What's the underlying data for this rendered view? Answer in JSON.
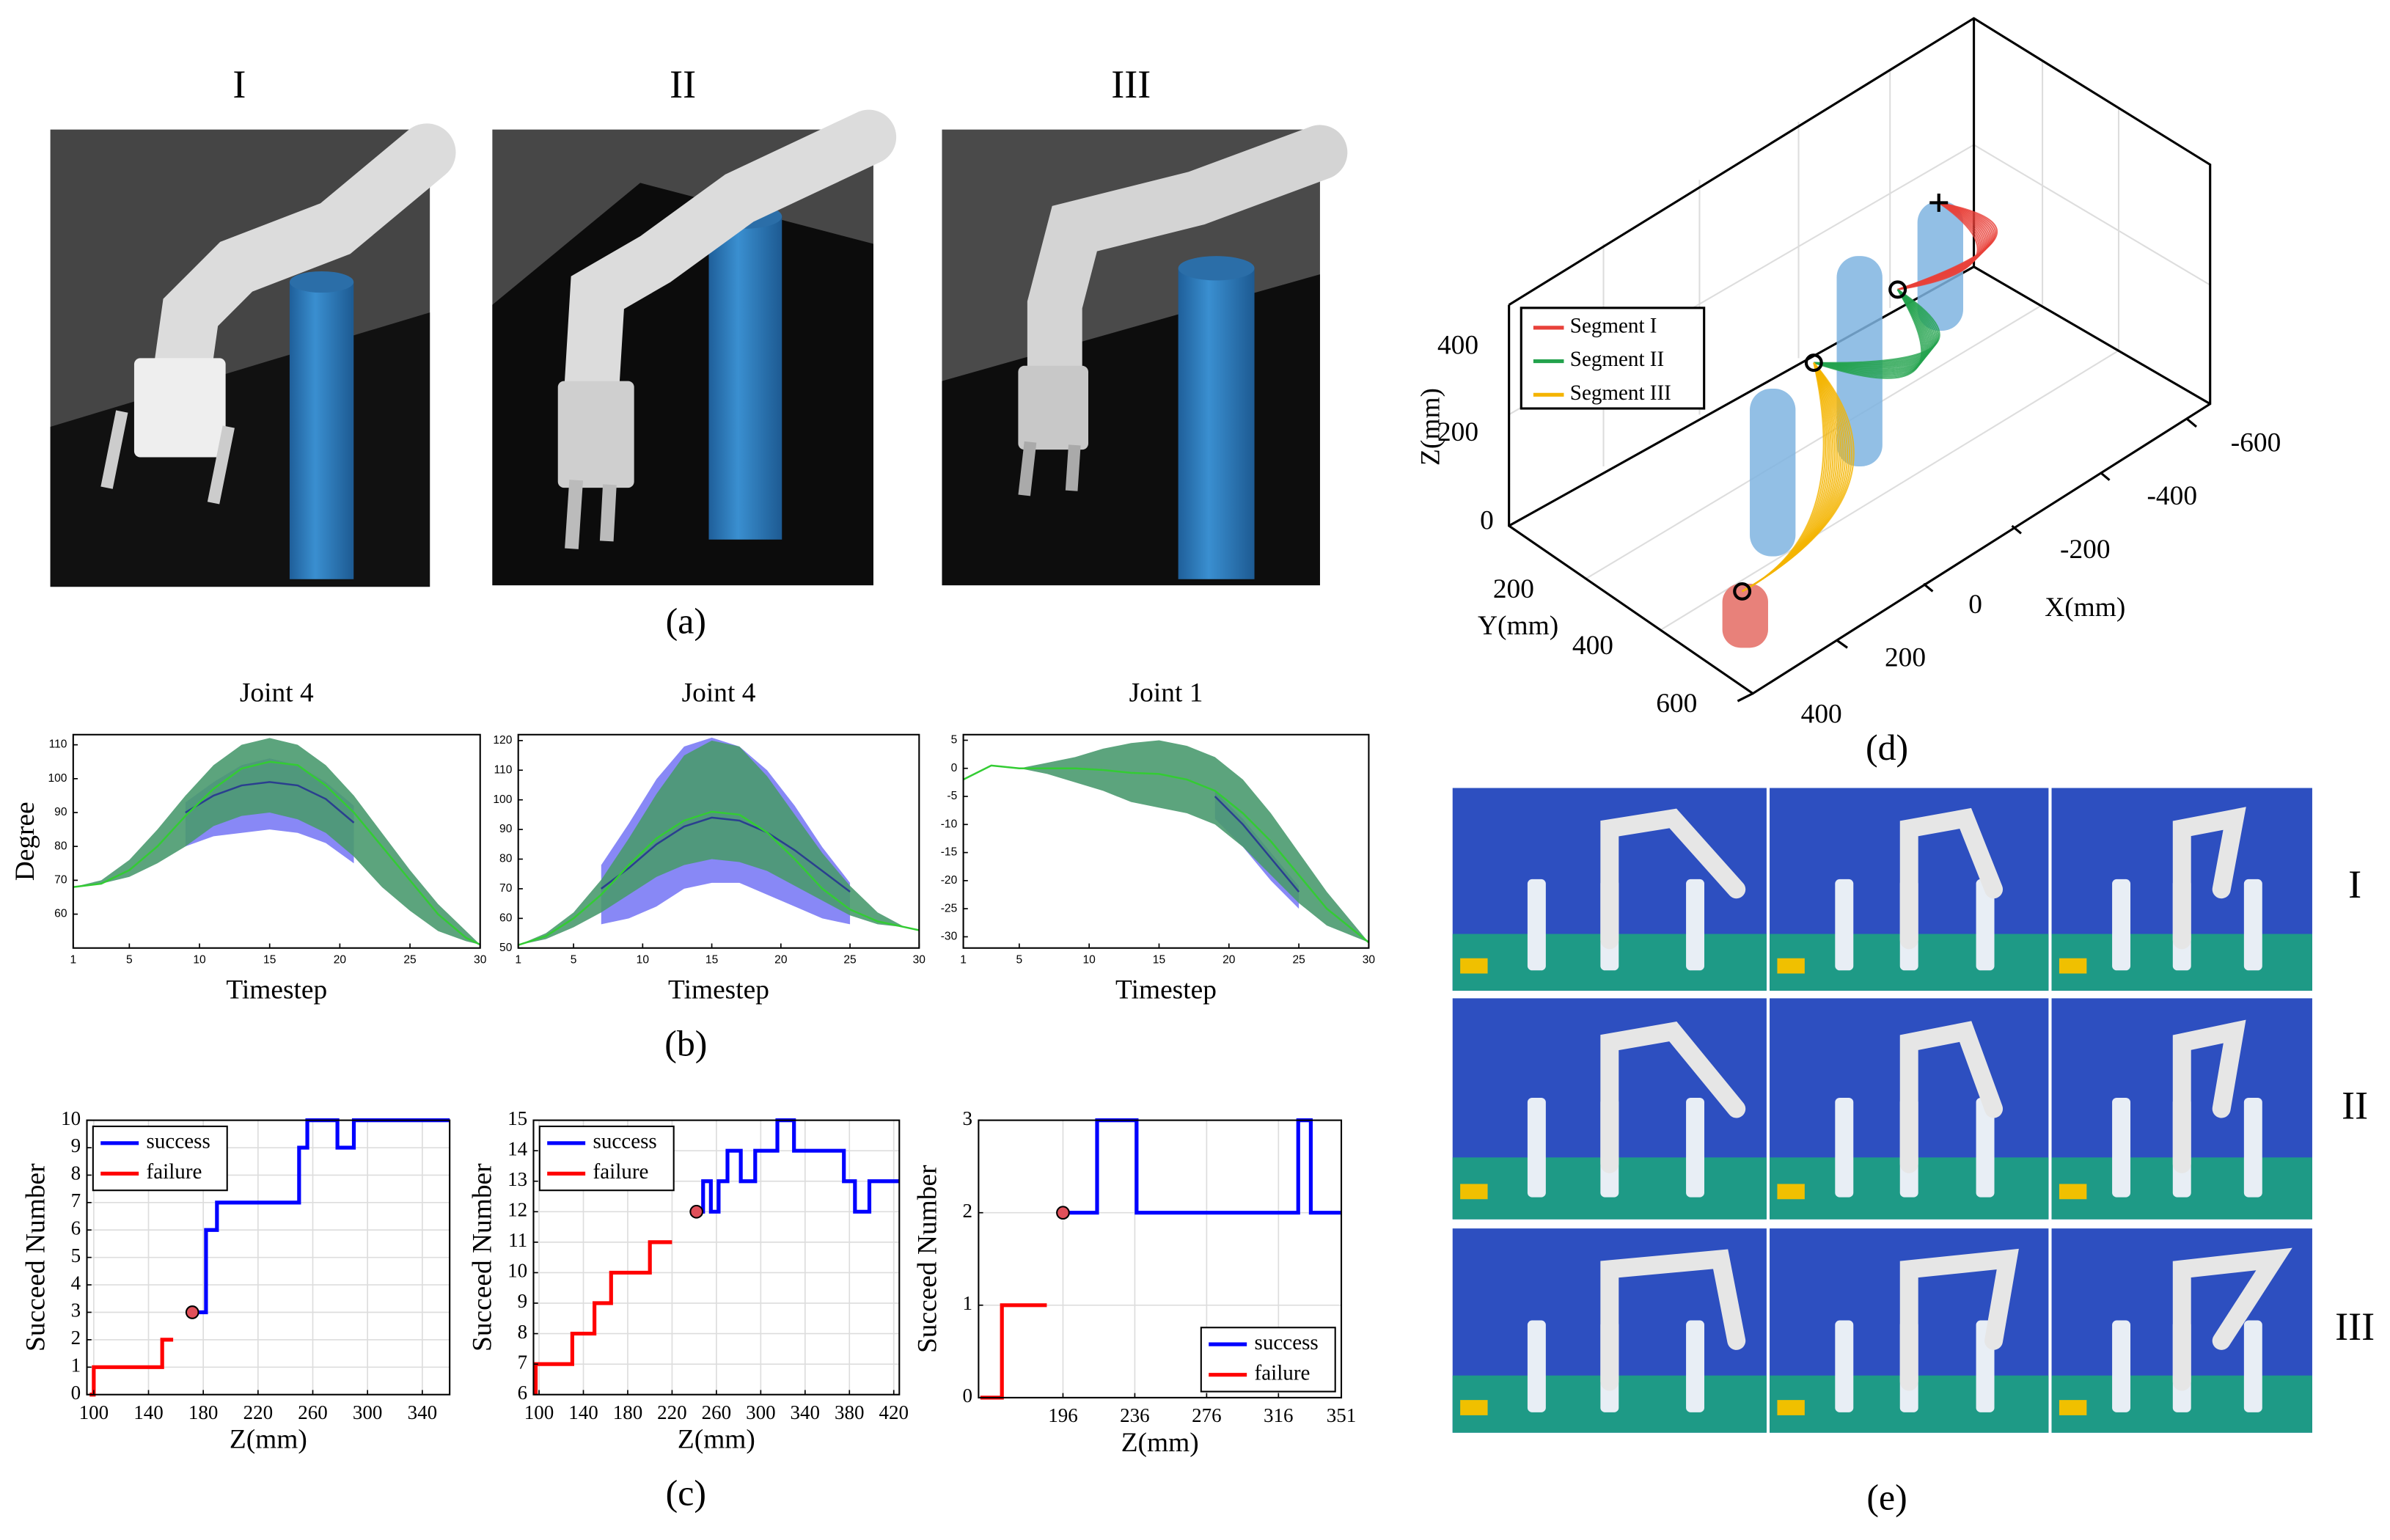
{
  "panel_a": {
    "titles": [
      "I",
      "II",
      "III"
    ],
    "caption": "(a)"
  },
  "chart_data": [
    {
      "type": "band",
      "title": "Joint 4",
      "x_label": "Timestep",
      "y_label": "Degree",
      "x": [
        1,
        3,
        5,
        7,
        9,
        11,
        13,
        15,
        17,
        19,
        21,
        23,
        25,
        27,
        29,
        30
      ],
      "xlim": [
        1,
        30
      ],
      "xticks": [
        1,
        5,
        10,
        15,
        20,
        25,
        30
      ],
      "ylim": [
        50,
        113
      ],
      "yticks": [
        60,
        70,
        80,
        90,
        100,
        110
      ],
      "series": [
        {
          "color": "#7b7bf5",
          "lower": [
            null,
            null,
            null,
            null,
            80,
            83,
            84,
            85,
            84,
            81,
            75,
            null,
            null,
            null,
            null,
            null
          ],
          "upper": [
            null,
            null,
            null,
            null,
            93,
            99,
            104,
            106,
            104,
            99,
            92,
            null,
            null,
            null,
            null,
            null
          ]
        },
        {
          "color": "#4a9a6f",
          "lower": [
            68,
            69,
            71,
            75,
            80,
            86,
            89,
            90,
            88,
            84,
            77,
            68,
            61,
            55,
            52,
            51
          ],
          "upper": [
            68,
            70,
            76,
            85,
            95,
            104,
            110,
            112,
            110,
            104,
            95,
            84,
            73,
            63,
            55,
            51
          ]
        },
        {
          "color": "#2a3f8f",
          "values": [
            null,
            null,
            null,
            null,
            90,
            95,
            98,
            99,
            98,
            94,
            87,
            null,
            null,
            null,
            null,
            null
          ]
        },
        {
          "color": "#33cc33",
          "values": [
            68,
            69,
            73,
            80,
            89,
            97,
            103,
            105,
            104,
            98,
            90,
            80,
            70,
            60,
            53,
            51
          ]
        }
      ]
    },
    {
      "type": "band",
      "title": "Joint 4",
      "x_label": "Timestep",
      "x": [
        1,
        3,
        5,
        7,
        9,
        11,
        13,
        15,
        17,
        19,
        21,
        23,
        25,
        27,
        29,
        30
      ],
      "xlim": [
        1,
        30
      ],
      "xticks": [
        1,
        5,
        10,
        15,
        20,
        25,
        30
      ],
      "ylim": [
        50,
        122
      ],
      "yticks": [
        50,
        60,
        70,
        80,
        90,
        100,
        110,
        120
      ],
      "series": [
        {
          "color": "#7b7bf5",
          "lower": [
            null,
            null,
            null,
            58,
            60,
            64,
            70,
            72,
            72,
            68,
            64,
            60,
            58,
            null,
            null,
            null
          ],
          "upper": [
            null,
            null,
            null,
            78,
            92,
            107,
            118,
            121,
            118,
            110,
            98,
            84,
            72,
            null,
            null,
            null
          ]
        },
        {
          "color": "#4a9a6f",
          "lower": [
            51,
            53,
            57,
            62,
            68,
            74,
            78,
            80,
            79,
            76,
            71,
            66,
            61,
            58,
            57,
            56
          ],
          "upper": [
            51,
            55,
            62,
            73,
            87,
            102,
            115,
            120,
            118,
            108,
            95,
            82,
            71,
            62,
            57,
            56
          ]
        },
        {
          "color": "#2a3f8f",
          "values": [
            null,
            null,
            null,
            70,
            77,
            85,
            91,
            94,
            93,
            89,
            83,
            76,
            69,
            null,
            null,
            null
          ]
        },
        {
          "color": "#33cc33",
          "values": [
            51,
            54,
            60,
            68,
            78,
            87,
            93,
            96,
            95,
            89,
            80,
            70,
            63,
            59,
            57,
            56
          ]
        }
      ]
    },
    {
      "type": "band",
      "title": "Joint 1",
      "x_label": "Timestep",
      "x": [
        1,
        3,
        5,
        7,
        9,
        11,
        13,
        15,
        17,
        19,
        21,
        23,
        25,
        27,
        29,
        30
      ],
      "xlim": [
        1,
        30
      ],
      "xticks": [
        1,
        5,
        10,
        15,
        20,
        25,
        30
      ],
      "ylim": [
        -32,
        6
      ],
      "yticks": [
        5,
        0,
        -5,
        -10,
        -15,
        -20,
        -25,
        -30
      ],
      "series": [
        {
          "color": "#7b7bf5",
          "lower": [
            null,
            null,
            null,
            null,
            null,
            null,
            null,
            null,
            null,
            -9,
            -14,
            -20,
            -25,
            null,
            null,
            null
          ],
          "upper": [
            null,
            null,
            null,
            null,
            null,
            null,
            null,
            null,
            null,
            -4,
            -9,
            -15,
            -21,
            null,
            null,
            null
          ]
        },
        {
          "color": "#4a9a6f",
          "lower": [
            -2,
            0.5,
            0,
            -1,
            -2.5,
            -4,
            -6,
            -7,
            -8,
            -10,
            -14,
            -19,
            -24,
            -28,
            -30,
            -31
          ],
          "upper": [
            -2,
            0.5,
            0,
            1,
            2,
            3.5,
            4.5,
            5,
            4,
            2,
            -2,
            -8,
            -15,
            -22,
            -28,
            -31
          ]
        },
        {
          "color": "#2a3f8f",
          "values": [
            null,
            null,
            null,
            null,
            null,
            null,
            null,
            null,
            null,
            -5,
            -10,
            -16,
            -22,
            null,
            null,
            null
          ]
        },
        {
          "color": "#33cc33",
          "values": [
            -2,
            0.5,
            0,
            0,
            0,
            -0.3,
            -0.8,
            -1,
            -2,
            -4,
            -8,
            -13,
            -19,
            -25,
            -29,
            -31
          ]
        }
      ]
    },
    {
      "type": "step",
      "x_label": "Z(mm)",
      "y_label": "Succeed Number",
      "grid": true,
      "legend": "upper left",
      "xlim": [
        95,
        360
      ],
      "xticks": [
        100,
        140,
        180,
        220,
        260,
        300,
        340
      ],
      "ylim": [
        0,
        10
      ],
      "yticks": [
        0,
        1,
        2,
        3,
        4,
        5,
        6,
        7,
        8,
        9,
        10
      ],
      "series": [
        {
          "name": "success",
          "color": "#0000ff",
          "x": [
            172,
            182,
            182,
            190,
            190,
            250,
            250,
            256,
            256,
            278,
            278,
            290,
            290,
            360
          ],
          "values": [
            3,
            3,
            6,
            6,
            7,
            7,
            9,
            9,
            10,
            10,
            9,
            9,
            10,
            10
          ]
        },
        {
          "name": "failure",
          "color": "#ff0000",
          "x": [
            97,
            100,
            100,
            150,
            150,
            158
          ],
          "values": [
            0,
            0,
            1,
            1,
            2,
            2
          ]
        }
      ],
      "highlight": {
        "x": 172,
        "y": 3
      }
    },
    {
      "type": "step",
      "x_label": "Z(mm)",
      "y_label": "Succeed Number",
      "grid": true,
      "legend": "upper left",
      "xlim": [
        95,
        425
      ],
      "xticks": [
        100,
        140,
        180,
        220,
        260,
        300,
        340,
        380,
        420
      ],
      "ylim": [
        6,
        15
      ],
      "yticks": [
        6,
        7,
        8,
        9,
        10,
        11,
        12,
        13,
        14,
        15
      ],
      "series": [
        {
          "name": "success",
          "color": "#0000ff",
          "x": [
            242,
            248,
            248,
            255,
            255,
            262,
            262,
            270,
            270,
            282,
            282,
            295,
            295,
            315,
            315,
            330,
            330,
            375,
            375,
            385,
            385,
            398,
            398,
            425
          ],
          "values": [
            12,
            12,
            13,
            13,
            12,
            12,
            13,
            13,
            14,
            14,
            13,
            13,
            14,
            14,
            15,
            15,
            14,
            14,
            13,
            13,
            12,
            12,
            13,
            13
          ]
        },
        {
          "name": "failure",
          "color": "#ff0000",
          "x": [
            97,
            97,
            130,
            130,
            150,
            150,
            165,
            165,
            200,
            200,
            220
          ],
          "values": [
            6,
            7,
            7,
            8,
            8,
            9,
            9,
            10,
            10,
            11,
            11
          ]
        }
      ],
      "highlight": {
        "x": 242,
        "y": 12
      }
    },
    {
      "type": "step",
      "x_label": "Z(mm)",
      "y_label": "Succeed Number",
      "grid": true,
      "legend": "lower right",
      "xlim": [
        149,
        351
      ],
      "xticks": [
        196,
        236,
        276,
        316,
        351
      ],
      "ylim": [
        0,
        3
      ],
      "yticks": [
        0,
        1,
        2,
        3
      ],
      "series": [
        {
          "name": "success",
          "color": "#0000ff",
          "x": [
            196,
            215,
            215,
            237,
            237,
            327,
            327,
            334,
            334,
            351
          ],
          "values": [
            2,
            2,
            3,
            3,
            2,
            2,
            3,
            3,
            2,
            2
          ]
        },
        {
          "name": "failure",
          "color": "#ff0000",
          "x": [
            150,
            162,
            162,
            187
          ],
          "values": [
            0,
            0,
            1,
            1
          ]
        }
      ],
      "highlight": {
        "x": 196,
        "y": 2
      }
    }
  ],
  "panel_b": {
    "caption": "(b)"
  },
  "panel_c": {
    "caption": "(c)"
  },
  "panel_d": {
    "legend": [
      "Segment I",
      "Segment II",
      "Segment III"
    ],
    "z_label": "Z(mm)",
    "y_label": "Y(mm)",
    "x_label": "X(mm)",
    "z_ticks": [
      400,
      200,
      0
    ],
    "y_ticks": [
      200,
      400,
      600
    ],
    "x_ticks": [
      -600,
      -400,
      -200,
      0,
      200,
      400
    ],
    "caption": "(d)"
  },
  "panel_e": {
    "row_labels": [
      "I",
      "II",
      "III"
    ],
    "caption": "(e)"
  }
}
